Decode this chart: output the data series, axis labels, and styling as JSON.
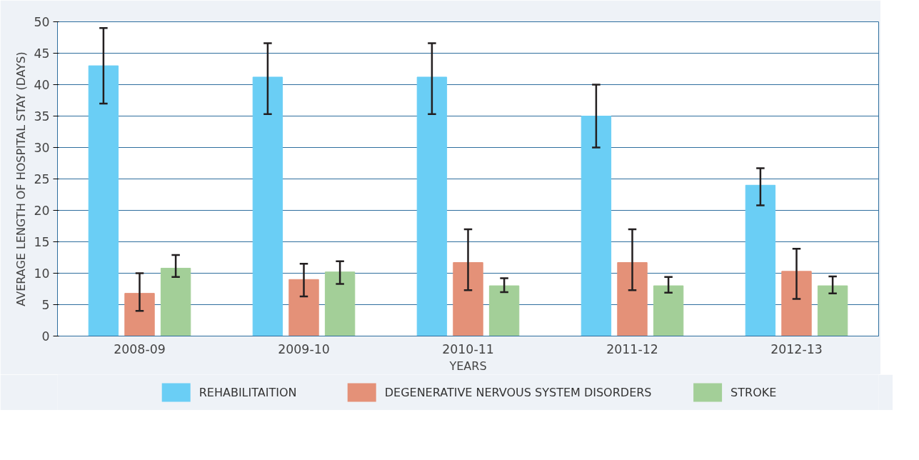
{
  "chart_data": {
    "type": "bar",
    "xlabel": "YEARS",
    "ylabel": "AVERAGE LENGTH OF HOSPITAL STAY (DAYS)",
    "categories": [
      "2008-09",
      "2009-10",
      "2010-11",
      "2011-12",
      "2012-13"
    ],
    "series": [
      {
        "name": "REHABILITAITION",
        "color": "#6acef5",
        "values": [
          43,
          41.2,
          41.2,
          35,
          24
        ],
        "errors": [
          [
            37,
            49
          ],
          [
            35.3,
            46.6
          ],
          [
            35.3,
            46.6
          ],
          [
            30,
            40
          ],
          [
            20.8,
            26.7
          ]
        ]
      },
      {
        "name": "DEGENERATIVE NERVOUS SYSTEM DISORDERS",
        "color": "#e49178",
        "values": [
          6.8,
          9,
          11.7,
          11.7,
          10.3
        ],
        "errors": [
          [
            4,
            10
          ],
          [
            6.3,
            11.5
          ],
          [
            7.3,
            17
          ],
          [
            7.3,
            17
          ],
          [
            5.9,
            13.9
          ]
        ]
      },
      {
        "name": "STROKE",
        "color": "#a3cf98",
        "values": [
          10.8,
          10.2,
          8,
          8,
          8
        ],
        "errors": [
          [
            9.4,
            12.9
          ],
          [
            8.3,
            11.9
          ],
          [
            7,
            9.2
          ],
          [
            6.9,
            9.4
          ],
          [
            6.8,
            9.5
          ]
        ]
      }
    ],
    "ylim": [
      0,
      50
    ],
    "yticks": [
      0,
      5,
      10,
      15,
      20,
      25,
      30,
      35,
      40,
      45,
      50
    ],
    "grid": "y",
    "legend": "bottom"
  }
}
